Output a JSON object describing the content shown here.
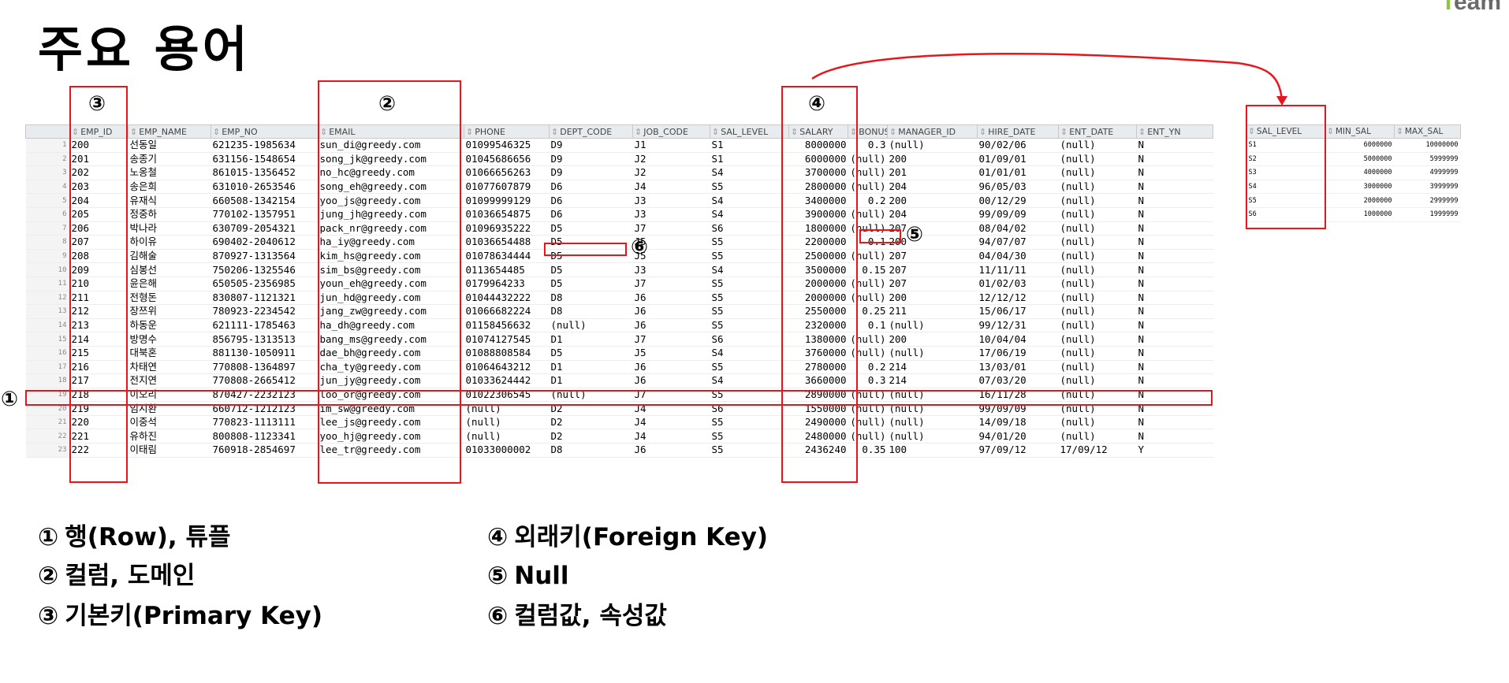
{
  "brand": {
    "accent": "T",
    "rest": "eam"
  },
  "title": "주요 용어",
  "markers": {
    "m1": "①",
    "m2": "②",
    "m3": "③",
    "m4": "④",
    "m5": "⑤",
    "m6": "⑥"
  },
  "emp_table": {
    "columns": [
      "EMP_ID",
      "EMP_NAME",
      "EMP_NO",
      "EMAIL",
      "PHONE",
      "DEPT_CODE",
      "JOB_CODE",
      "SAL_LEVEL",
      "SALARY",
      "BONUS",
      "MANAGER_ID",
      "HIRE_DATE",
      "ENT_DATE",
      "ENT_YN"
    ],
    "rows": [
      [
        "1",
        "200",
        "선동일",
        "621235-1985634",
        "sun_di@greedy.com",
        "01099546325",
        "D9",
        "J1",
        "S1",
        "8000000",
        "0.3",
        "(null)",
        "90/02/06",
        "(null)",
        "N"
      ],
      [
        "2",
        "201",
        "송종기",
        "631156-1548654",
        "song_jk@greedy.com",
        "01045686656",
        "D9",
        "J2",
        "S1",
        "6000000",
        "(null)",
        "200",
        "01/09/01",
        "(null)",
        "N"
      ],
      [
        "3",
        "202",
        "노옹철",
        "861015-1356452",
        "no_hc@greedy.com",
        "01066656263",
        "D9",
        "J2",
        "S4",
        "3700000",
        "(null)",
        "201",
        "01/01/01",
        "(null)",
        "N"
      ],
      [
        "4",
        "203",
        "송은희",
        "631010-2653546",
        "song_eh@greedy.com",
        "01077607879",
        "D6",
        "J4",
        "S5",
        "2800000",
        "(null)",
        "204",
        "96/05/03",
        "(null)",
        "N"
      ],
      [
        "5",
        "204",
        "유재식",
        "660508-1342154",
        "yoo_js@greedy.com",
        "01099999129",
        "D6",
        "J3",
        "S4",
        "3400000",
        "0.2",
        "200",
        "00/12/29",
        "(null)",
        "N"
      ],
      [
        "6",
        "205",
        "정중하",
        "770102-1357951",
        "jung_jh@greedy.com",
        "01036654875",
        "D6",
        "J3",
        "S4",
        "3900000",
        "(null)",
        "204",
        "99/09/09",
        "(null)",
        "N"
      ],
      [
        "7",
        "206",
        "박나라",
        "630709-2054321",
        "pack_nr@greedy.com",
        "01096935222",
        "D5",
        "J7",
        "S6",
        "1800000",
        "(null)",
        "207",
        "08/04/02",
        "(null)",
        "N"
      ],
      [
        "8",
        "207",
        "하이유",
        "690402-2040612",
        "ha_iy@greedy.com",
        "01036654488",
        "D5",
        "J5",
        "S5",
        "2200000",
        "0.1",
        "200",
        "94/07/07",
        "(null)",
        "N"
      ],
      [
        "9",
        "208",
        "김해술",
        "870927-1313564",
        "kim_hs@greedy.com",
        "01078634444",
        "D5",
        "J5",
        "S5",
        "2500000",
        "(null)",
        "207",
        "04/04/30",
        "(null)",
        "N"
      ],
      [
        "10",
        "209",
        "심봉선",
        "750206-1325546",
        "sim_bs@greedy.com",
        "0113654485",
        "D5",
        "J3",
        "S4",
        "3500000",
        "0.15",
        "207",
        "11/11/11",
        "(null)",
        "N"
      ],
      [
        "11",
        "210",
        "윤은해",
        "650505-2356985",
        "youn_eh@greedy.com",
        "0179964233",
        "D5",
        "J7",
        "S5",
        "2000000",
        "(null)",
        "207",
        "01/02/03",
        "(null)",
        "N"
      ],
      [
        "12",
        "211",
        "전형돈",
        "830807-1121321",
        "jun_hd@greedy.com",
        "01044432222",
        "D8",
        "J6",
        "S5",
        "2000000",
        "(null)",
        "200",
        "12/12/12",
        "(null)",
        "N"
      ],
      [
        "13",
        "212",
        "장쯔위",
        "780923-2234542",
        "jang_zw@greedy.com",
        "01066682224",
        "D8",
        "J6",
        "S5",
        "2550000",
        "0.25",
        "211",
        "15/06/17",
        "(null)",
        "N"
      ],
      [
        "14",
        "213",
        "하동운",
        "621111-1785463",
        "ha_dh@greedy.com",
        "01158456632",
        "(null)",
        "J6",
        "S5",
        "2320000",
        "0.1",
        "(null)",
        "99/12/31",
        "(null)",
        "N"
      ],
      [
        "15",
        "214",
        "방명수",
        "856795-1313513",
        "bang_ms@greedy.com",
        "01074127545",
        "D1",
        "J7",
        "S6",
        "1380000",
        "(null)",
        "200",
        "10/04/04",
        "(null)",
        "N"
      ],
      [
        "16",
        "215",
        "대북혼",
        "881130-1050911",
        "dae_bh@greedy.com",
        "01088808584",
        "D5",
        "J5",
        "S4",
        "3760000",
        "(null)",
        "(null)",
        "17/06/19",
        "(null)",
        "N"
      ],
      [
        "17",
        "216",
        "차태연",
        "770808-1364897",
        "cha_ty@greedy.com",
        "01064643212",
        "D1",
        "J6",
        "S5",
        "2780000",
        "0.2",
        "214",
        "13/03/01",
        "(null)",
        "N"
      ],
      [
        "18",
        "217",
        "전지연",
        "770808-2665412",
        "jun_jy@greedy.com",
        "01033624442",
        "D1",
        "J6",
        "S4",
        "3660000",
        "0.3",
        "214",
        "07/03/20",
        "(null)",
        "N"
      ],
      [
        "19",
        "218",
        "이오리",
        "870427-2232123",
        "loo_or@greedy.com",
        "01022306545",
        "(null)",
        "J7",
        "S5",
        "2890000",
        "(null)",
        "(null)",
        "16/11/28",
        "(null)",
        "N"
      ],
      [
        "20",
        "219",
        "임시환",
        "660712-1212123",
        "im_sw@greedy.com",
        "(null)",
        "D2",
        "J4",
        "S6",
        "1550000",
        "(null)",
        "(null)",
        "99/09/09",
        "(null)",
        "N"
      ],
      [
        "21",
        "220",
        "이중석",
        "770823-1113111",
        "lee_js@greedy.com",
        "(null)",
        "D2",
        "J4",
        "S5",
        "2490000",
        "(null)",
        "(null)",
        "14/09/18",
        "(null)",
        "N"
      ],
      [
        "22",
        "221",
        "유하진",
        "800808-1123341",
        "yoo_hj@greedy.com",
        "(null)",
        "D2",
        "J4",
        "S5",
        "2480000",
        "(null)",
        "(null)",
        "94/01/20",
        "(null)",
        "N"
      ],
      [
        "23",
        "222",
        "이태림",
        "760918-2854697",
        "lee_tr@greedy.com",
        "01033000002",
        "D8",
        "J6",
        "S5",
        "2436240",
        "0.35",
        "100",
        "97/09/12",
        "17/09/12",
        "Y"
      ]
    ]
  },
  "sal_table": {
    "columns": [
      "SAL_LEVEL",
      "MIN_SAL",
      "MAX_SAL"
    ],
    "rows": [
      [
        "S1",
        "6000000",
        "10000000"
      ],
      [
        "S2",
        "5000000",
        "5999999"
      ],
      [
        "S3",
        "4000000",
        "4999999"
      ],
      [
        "S4",
        "3000000",
        "3999999"
      ],
      [
        "S5",
        "2000000",
        "2999999"
      ],
      [
        "S6",
        "1000000",
        "1999999"
      ]
    ]
  },
  "legend": [
    {
      "mark": "①",
      "text": "행(Row), 튜플"
    },
    {
      "mark": "②",
      "text": "컬럼, 도메인"
    },
    {
      "mark": "③",
      "text": "기본키(Primary Key)"
    },
    {
      "mark": "④",
      "text": "외래키(Foreign Key)"
    },
    {
      "mark": "⑤",
      "text": "Null"
    },
    {
      "mark": "⑥",
      "text": "컬럼값, 속성값"
    }
  ],
  "colors": {
    "annotation_red": "#e8161c",
    "header_gray": "#e9ecef",
    "brand_green": "#8dc63f"
  }
}
